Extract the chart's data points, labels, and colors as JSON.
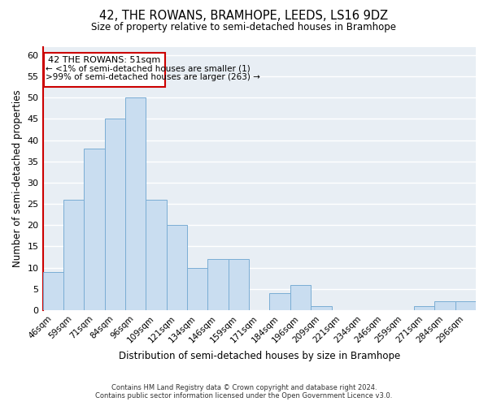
{
  "title": "42, THE ROWANS, BRAMHOPE, LEEDS, LS16 9DZ",
  "subtitle": "Size of property relative to semi-detached houses in Bramhope",
  "xlabel": "Distribution of semi-detached houses by size in Bramhope",
  "ylabel": "Number of semi-detached properties",
  "bar_labels": [
    "46sqm",
    "59sqm",
    "71sqm",
    "84sqm",
    "96sqm",
    "109sqm",
    "121sqm",
    "134sqm",
    "146sqm",
    "159sqm",
    "171sqm",
    "184sqm",
    "196sqm",
    "209sqm",
    "221sqm",
    "234sqm",
    "246sqm",
    "259sqm",
    "271sqm",
    "284sqm",
    "296sqm"
  ],
  "bar_values": [
    9,
    26,
    38,
    45,
    50,
    26,
    20,
    10,
    12,
    12,
    0,
    4,
    6,
    1,
    0,
    0,
    0,
    0,
    1,
    2,
    2
  ],
  "bar_color": "#c9ddf0",
  "bar_edge_color": "#7aadd4",
  "ylim": [
    0,
    62
  ],
  "yticks": [
    0,
    5,
    10,
    15,
    20,
    25,
    30,
    35,
    40,
    45,
    50,
    55,
    60
  ],
  "annotation_title": "42 THE ROWANS: 51sqm",
  "annotation_line1": "← <1% of semi-detached houses are smaller (1)",
  "annotation_line2": ">99% of semi-detached houses are larger (263) →",
  "annotation_box_color": "#ffffff",
  "annotation_box_edge": "#cc0000",
  "footer_line1": "Contains HM Land Registry data © Crown copyright and database right 2024.",
  "footer_line2": "Contains public sector information licensed under the Open Government Licence v3.0.",
  "bg_color": "#ffffff",
  "plot_bg_color": "#e8eef4",
  "grid_color": "#ffffff",
  "left_spine_color": "#cc0000"
}
